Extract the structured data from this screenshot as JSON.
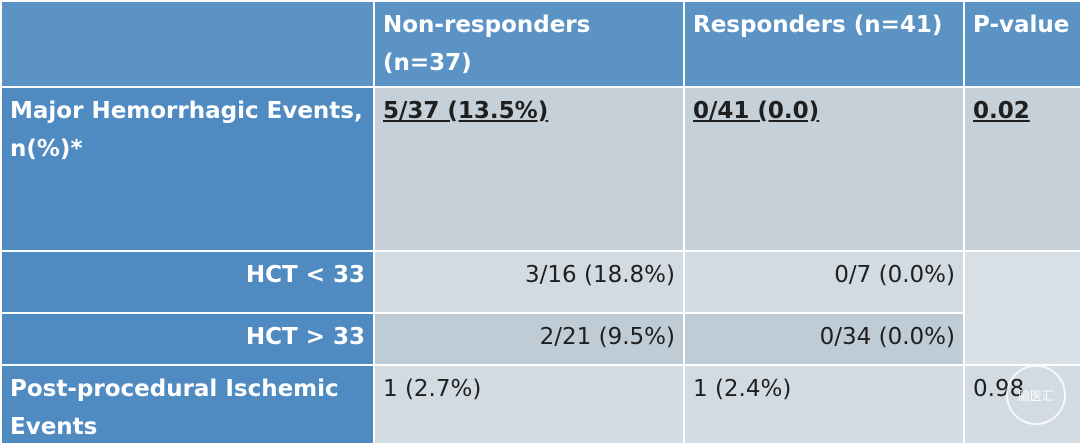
{
  "table": {
    "header": [
      "Non-responders (n=37)",
      "Responders (n=41)",
      "P-value"
    ],
    "rows": [
      [
        "Major Hemorrhagic Events, n(%)*",
        "5/37 (13.5%)",
        "0/41 (0.0)",
        "0.02"
      ],
      [
        "HCT < 33",
        "3/16 (18.8%)",
        "0/7 (0.0%)"
      ],
      [
        "HCT > 33",
        "2/21 (9.5%)",
        "0/34 (0.0%)"
      ],
      [
        "Post-procedural Ischemic Events",
        "1 (2.7%)",
        "1 (2.4%)",
        "0.98"
      ]
    ]
  },
  "watermark": "脑医汇"
}
